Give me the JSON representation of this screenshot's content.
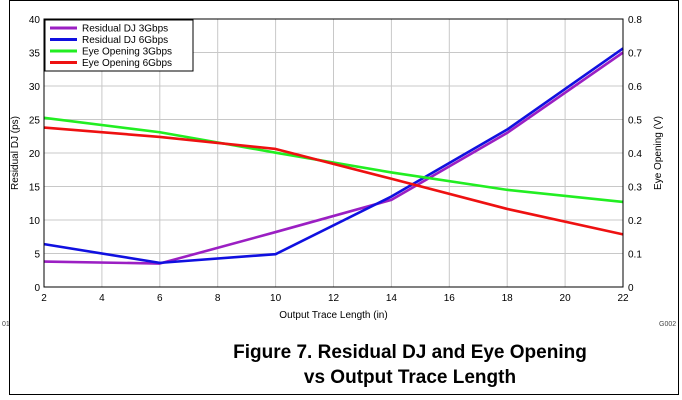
{
  "figure": {
    "caption_line1": "Figure 7. Residual DJ and Eye Opening",
    "caption_line2": "vs Output Trace Length",
    "code_left": "01",
    "code_right": "G002"
  },
  "chart_data": {
    "type": "line",
    "title": "",
    "xlabel": "Output Trace Length (in)",
    "ylabel": "Residual DJ (ps)",
    "y2label": "Eye Opening (V)",
    "xlim": [
      2,
      22
    ],
    "ylim": [
      0,
      40
    ],
    "y2lim": [
      0,
      0.8
    ],
    "xticks": [
      2,
      4,
      6,
      8,
      10,
      12,
      14,
      16,
      18,
      20,
      22
    ],
    "yticks": [
      0,
      5,
      10,
      15,
      20,
      25,
      30,
      35,
      40
    ],
    "y2ticks": [
      0,
      0.1,
      0.2,
      0.3,
      0.4,
      0.5,
      0.6,
      0.7,
      0.8
    ],
    "grid": true,
    "legend_position": "top-left",
    "series": [
      {
        "name": "Residual DJ 3Gbps",
        "axis": "left",
        "color": "#9b1fc3",
        "x": [
          2,
          6,
          10,
          14,
          18,
          22
        ],
        "y": [
          3.8,
          3.5,
          8.2,
          13.0,
          23.0,
          35.0
        ]
      },
      {
        "name": "Residual DJ 6Gbps",
        "axis": "left",
        "color": "#1010e0",
        "x": [
          2,
          6,
          10,
          14,
          18,
          22
        ],
        "y": [
          6.4,
          3.6,
          4.9,
          13.5,
          23.5,
          35.6
        ]
      },
      {
        "name": "Eye Opening 3Gbps",
        "axis": "right",
        "color": "#22ee22",
        "x": [
          2,
          6,
          10,
          14,
          18,
          22
        ],
        "y": [
          0.505,
          0.462,
          0.401,
          0.342,
          0.29,
          0.254
        ]
      },
      {
        "name": "Eye Opening 6Gbps",
        "axis": "right",
        "color": "#ee1111",
        "x": [
          2,
          6,
          10,
          14,
          18,
          22
        ],
        "y": [
          0.476,
          0.448,
          0.412,
          0.323,
          0.233,
          0.157
        ]
      }
    ]
  }
}
